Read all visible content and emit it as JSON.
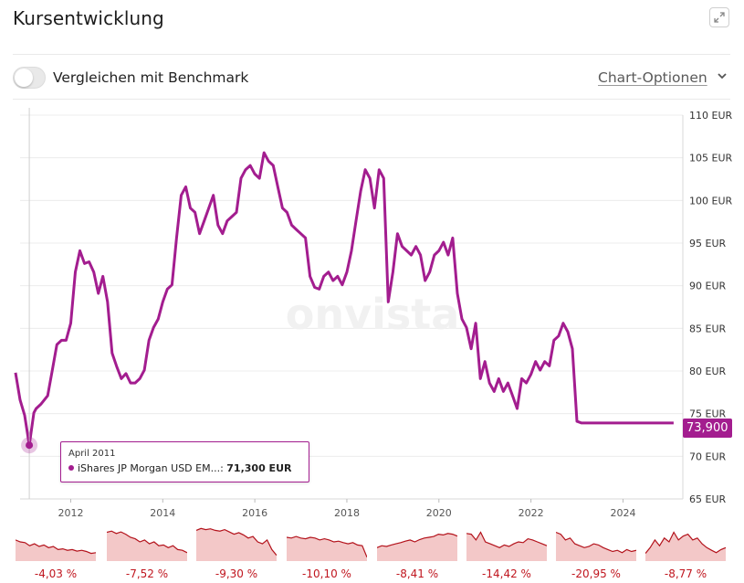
{
  "header": {
    "title": "Kursentwicklung"
  },
  "controls": {
    "benchmark_label": "Vergleichen mit Benchmark",
    "chart_options_label": "Chart-Optionen"
  },
  "colors": {
    "line": "#a31d8f",
    "spark_fill": "#f3c8c8",
    "spark_line": "#b3121b",
    "negative_text": "#c0161f"
  },
  "icons": {
    "expand": "expand-icon",
    "chevron": "chevron-down-icon"
  },
  "tooltip": {
    "date": "April 2011",
    "series": "iShares JP Morgan USD EM...:",
    "value": "71,300 EUR"
  },
  "last_value_badge": "73,900",
  "watermark": "onvista",
  "chart_data": {
    "type": "line",
    "title": "Kursentwicklung",
    "y_unit": "EUR",
    "ylim": [
      65,
      110
    ],
    "yticks": [
      65,
      70,
      75,
      80,
      85,
      90,
      95,
      100,
      105,
      110
    ],
    "ytick_labels": [
      "65 EUR",
      "70 EUR",
      "75 EUR",
      "80 EUR",
      "85 EUR",
      "90 EUR",
      "95 EUR",
      "100 EUR",
      "105 EUR",
      "110 EUR"
    ],
    "xlim": [
      2010.9,
      2025.3
    ],
    "xticks": [
      2012,
      2014,
      2016,
      2018,
      2020,
      2022,
      2024
    ],
    "xtick_labels": [
      "2012",
      "2014",
      "2016",
      "2018",
      "2020",
      "2022",
      "2024"
    ],
    "grid": true,
    "series": [
      {
        "x": [
          2010.8,
          2010.9,
          2011.0,
          2011.1,
          2011.2,
          2011.25,
          2011.35,
          2011.5,
          2011.6,
          2011.7,
          2011.8,
          2011.9,
          2012.0,
          2012.1,
          2012.2,
          2012.3,
          2012.4,
          2012.5,
          2012.6,
          2012.7,
          2012.8,
          2012.9,
          2013.0,
          2013.1,
          2013.2,
          2013.3,
          2013.4,
          2013.5,
          2013.6,
          2013.7,
          2013.8,
          2013.9,
          2014.0,
          2014.1,
          2014.2,
          2014.3,
          2014.4,
          2014.5,
          2014.6,
          2014.7,
          2014.8,
          2014.9,
          2015.0,
          2015.1,
          2015.2,
          2015.3,
          2015.4,
          2015.5,
          2015.6,
          2015.7,
          2015.8,
          2015.9,
          2016.0,
          2016.1,
          2016.2,
          2016.3,
          2016.4,
          2016.5,
          2016.6,
          2016.7,
          2016.8,
          2016.9,
          2017.0,
          2017.1,
          2017.2,
          2017.3,
          2017.4,
          2017.5,
          2017.6,
          2017.7,
          2017.8,
          2017.9,
          2018.0,
          2018.1,
          2018.2,
          2018.3,
          2018.4,
          2018.5,
          2018.6,
          2018.7,
          2018.8,
          2018.9,
          2019.0,
          2019.1,
          2019.2,
          2019.3,
          2019.4,
          2019.5,
          2019.6,
          2019.7,
          2019.8,
          2019.9,
          2020.0,
          2020.1,
          2020.2,
          2020.3,
          2020.4,
          2020.5,
          2020.6,
          2020.7,
          2020.8,
          2020.9,
          2021.0,
          2021.1,
          2021.2,
          2021.3,
          2021.4,
          2021.5,
          2021.6,
          2021.7,
          2021.8,
          2021.9,
          2022.0,
          2022.1,
          2022.2,
          2022.3,
          2022.4,
          2022.5,
          2022.6,
          2022.7,
          2022.8,
          2022.9,
          2023.0,
          2023.1,
          2023.2,
          2023.3,
          2023.4,
          2023.5,
          2023.6,
          2023.7,
          2023.8,
          2023.9,
          2024.0,
          2024.1,
          2024.2,
          2024.3,
          2024.4,
          2024.5,
          2024.6,
          2024.7,
          2024.8,
          2024.9,
          2025.0,
          2025.1
        ],
        "y": [
          79.8,
          76.6,
          74.8,
          71.3,
          75.1,
          75.6,
          76.1,
          77.1,
          80.1,
          83.1,
          83.6,
          83.6,
          85.6,
          91.6,
          94.1,
          92.6,
          92.8,
          91.6,
          89.1,
          91.1,
          88.1,
          82.1,
          80.5,
          79.1,
          79.7,
          78.6,
          78.6,
          79.1,
          80.1,
          83.6,
          85.1,
          86.1,
          88.1,
          89.6,
          90.1,
          95.6,
          100.6,
          101.6,
          99.1,
          98.6,
          96.1,
          97.6,
          99.1,
          100.6,
          97.1,
          96.1,
          97.6,
          98.1,
          98.6,
          102.6,
          103.6,
          104.1,
          103.1,
          102.6,
          105.6,
          104.6,
          104.1,
          101.6,
          99.1,
          98.6,
          97.1,
          96.6,
          96.1,
          95.6,
          91.1,
          89.8,
          89.6,
          91.1,
          91.6,
          90.6,
          91.1,
          90.1,
          91.6,
          94.1,
          97.6,
          101.1,
          103.6,
          102.6,
          99.1,
          103.6,
          102.6,
          88.1,
          91.6,
          96.1,
          94.6,
          94.1,
          93.6,
          94.6,
          93.6,
          90.6,
          91.6,
          93.6,
          94.1,
          95.1,
          93.6,
          95.6,
          89.1,
          86.1,
          85.1,
          82.6,
          85.6,
          79.1,
          81.1,
          78.6,
          77.6,
          79.1,
          77.6,
          78.6,
          77.1,
          75.6,
          79.1,
          78.6,
          79.6,
          81.1,
          80.1,
          81.1,
          80.6,
          83.6,
          84.1,
          85.6,
          84.6,
          82.6,
          74.1,
          73.9,
          73.9,
          73.9,
          73.9,
          73.9,
          73.9,
          73.9,
          73.9,
          73.9,
          73.9,
          73.9,
          73.9,
          73.9,
          73.9,
          73.9,
          73.9,
          73.9,
          73.9,
          73.9,
          73.9,
          73.9
        ]
      }
    ],
    "highlight": {
      "x": 2011.1,
      "y": 71.3,
      "label": "April 2011"
    },
    "sparklines": [
      {
        "label": "-4,03 %",
        "values": [
          0.55,
          0.5,
          0.48,
          0.4,
          0.45,
          0.38,
          0.42,
          0.35,
          0.38,
          0.3,
          0.32,
          0.28,
          0.3,
          0.26,
          0.28,
          0.25,
          0.2,
          0.22
        ]
      },
      {
        "label": "-7,52 %",
        "values": [
          0.75,
          0.78,
          0.72,
          0.76,
          0.7,
          0.62,
          0.58,
          0.5,
          0.55,
          0.45,
          0.5,
          0.4,
          0.42,
          0.35,
          0.4,
          0.3,
          0.28,
          0.22
        ]
      },
      {
        "label": "-9,30 %",
        "values": [
          0.8,
          0.85,
          0.82,
          0.84,
          0.8,
          0.78,
          0.82,
          0.76,
          0.7,
          0.74,
          0.68,
          0.6,
          0.64,
          0.5,
          0.45,
          0.55,
          0.3,
          0.15
        ]
      },
      {
        "label": "-10,10 %",
        "values": [
          0.62,
          0.6,
          0.64,
          0.6,
          0.58,
          0.62,
          0.6,
          0.55,
          0.58,
          0.55,
          0.5,
          0.52,
          0.48,
          0.45,
          0.48,
          0.42,
          0.4,
          0.1
        ]
      },
      {
        "label": "-8,41 %",
        "values": [
          0.35,
          0.4,
          0.38,
          0.42,
          0.45,
          0.48,
          0.52,
          0.55,
          0.5,
          0.56,
          0.6,
          0.62,
          0.64,
          0.7,
          0.68,
          0.72,
          0.7,
          0.65
        ]
      },
      {
        "label": "-14,42 %",
        "values": [
          0.72,
          0.7,
          0.55,
          0.75,
          0.5,
          0.45,
          0.4,
          0.35,
          0.42,
          0.38,
          0.45,
          0.5,
          0.48,
          0.58,
          0.55,
          0.5,
          0.45,
          0.4
        ]
      },
      {
        "label": "-20,95 %",
        "values": [
          0.75,
          0.7,
          0.55,
          0.6,
          0.45,
          0.4,
          0.35,
          0.38,
          0.45,
          0.42,
          0.35,
          0.3,
          0.25,
          0.28,
          0.22,
          0.3,
          0.25,
          0.28
        ]
      },
      {
        "label": "-8,77 %",
        "values": [
          0.2,
          0.35,
          0.55,
          0.4,
          0.6,
          0.5,
          0.75,
          0.55,
          0.65,
          0.7,
          0.55,
          0.6,
          0.45,
          0.35,
          0.28,
          0.22,
          0.3,
          0.35
        ]
      }
    ]
  }
}
